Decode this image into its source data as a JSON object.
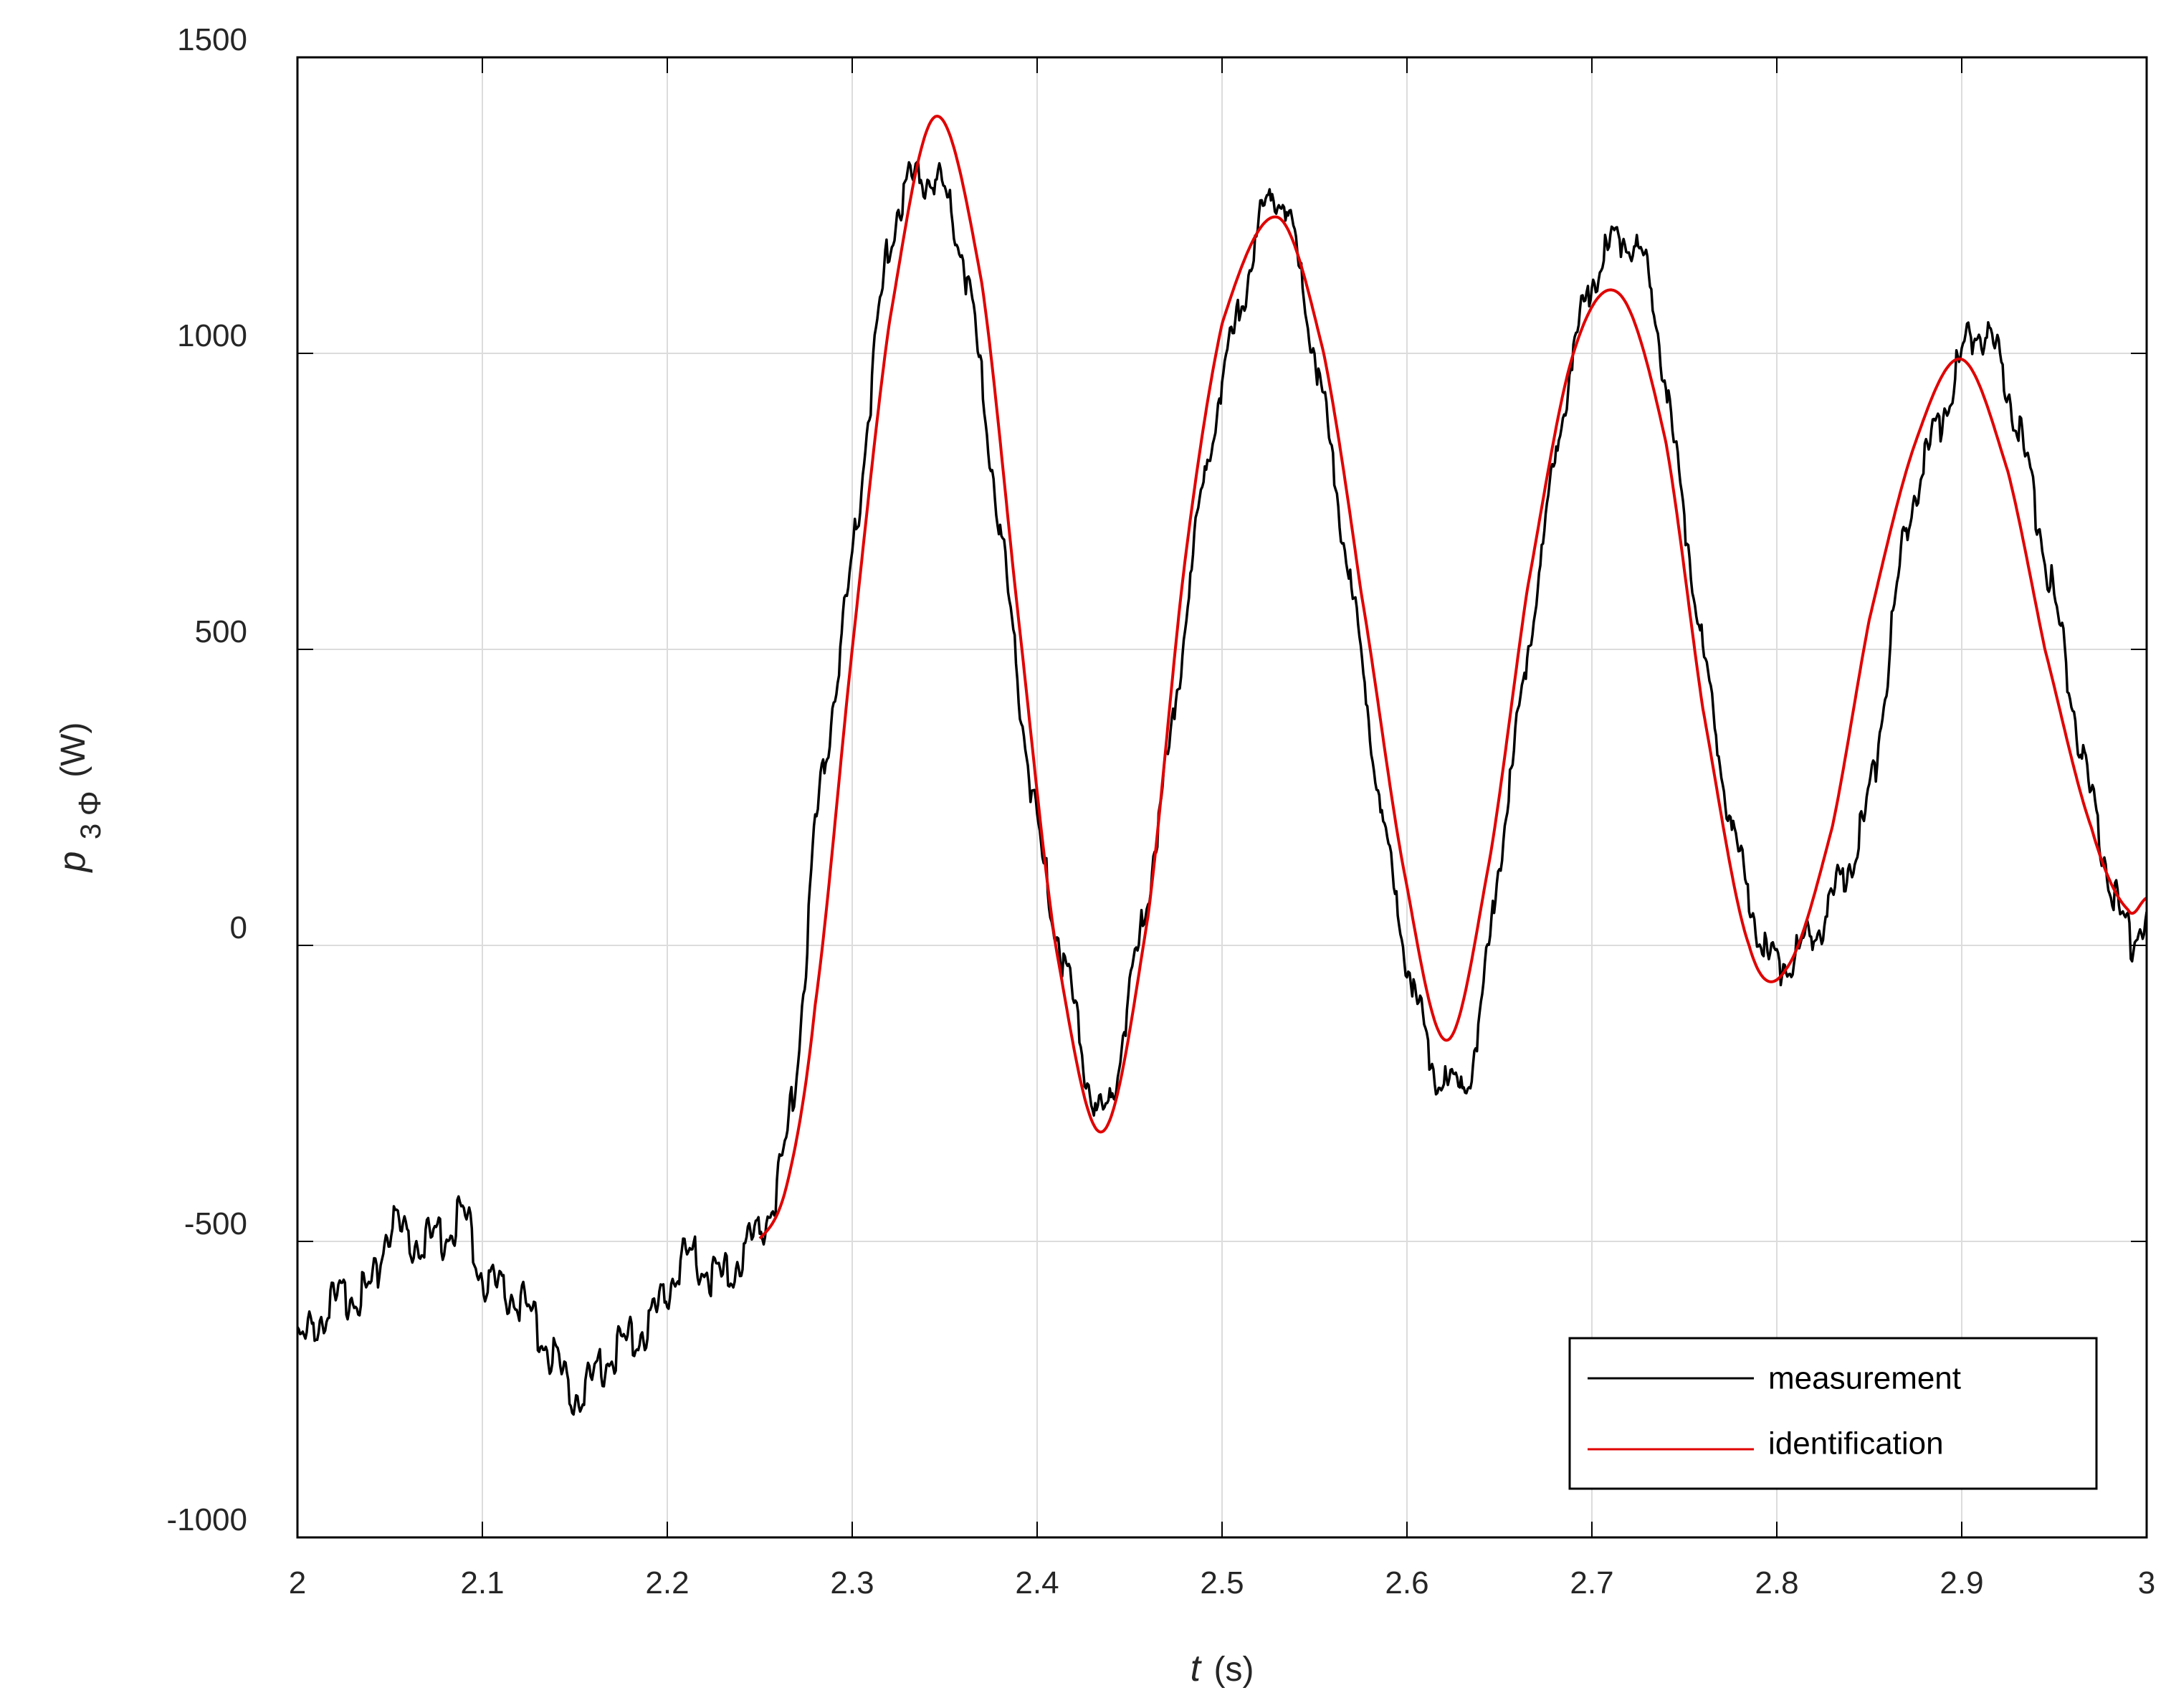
{
  "chart_data": {
    "type": "line",
    "xlabel": {
      "symbol": "t",
      "unit": "(s)"
    },
    "ylabel": {
      "symbol": "p",
      "subscript_num": "3",
      "subscript_sym": "Φ",
      "unit": "(W)"
    },
    "xlim": [
      2,
      3
    ],
    "ylim": [
      -1000,
      1500
    ],
    "xticks": [
      "2",
      "2.1",
      "2.2",
      "2.3",
      "2.4",
      "2.5",
      "2.6",
      "2.7",
      "2.8",
      "2.9",
      "3"
    ],
    "xtick_values": [
      2,
      2.1,
      2.2,
      2.3,
      2.4,
      2.5,
      2.6,
      2.7,
      2.8,
      2.9,
      3
    ],
    "yticks": [
      "1500",
      "1000",
      "500",
      "0",
      "-500",
      "-1000"
    ],
    "ytick_values": [
      1500,
      1000,
      500,
      0,
      -500,
      -1000
    ],
    "grid": true,
    "legend_position": "bottom-right",
    "series": [
      {
        "name": "measurement",
        "color": "#000000",
        "x": [
          2.0,
          2.02,
          2.04,
          2.05,
          2.06,
          2.08,
          2.09,
          2.1,
          2.12,
          2.14,
          2.15,
          2.17,
          2.19,
          2.21,
          2.23,
          2.25,
          2.26,
          2.27,
          2.28,
          2.3,
          2.32,
          2.34,
          2.36,
          2.38,
          2.4,
          2.42,
          2.435,
          2.45,
          2.47,
          2.49,
          2.51,
          2.53,
          2.55,
          2.57,
          2.59,
          2.61,
          2.62,
          2.635,
          2.65,
          2.67,
          2.69,
          2.71,
          2.73,
          2.75,
          2.77,
          2.79,
          2.8,
          2.815,
          2.83,
          2.85,
          2.87,
          2.89,
          2.91,
          2.93,
          2.95,
          2.97,
          2.99,
          3.0
        ],
        "y": [
          -680,
          -600,
          -580,
          -470,
          -500,
          -490,
          -460,
          -560,
          -600,
          -700,
          -760,
          -690,
          -640,
          -530,
          -560,
          -480,
          -400,
          -200,
          200,
          650,
          1180,
          1300,
          1160,
          700,
          200,
          -100,
          -290,
          -80,
          300,
          780,
          1080,
          1270,
          1000,
          600,
          150,
          -150,
          -230,
          -200,
          150,
          600,
          1000,
          1180,
          1130,
          720,
          300,
          30,
          -30,
          0,
          80,
          250,
          700,
          900,
          1040,
          880,
          580,
          250,
          20,
          60
        ],
        "noise_amplitude": 35
      },
      {
        "name": "identification",
        "color": "#e00000",
        "x": [
          2.25,
          2.265,
          2.28,
          2.3,
          2.32,
          2.345,
          2.37,
          2.39,
          2.41,
          2.435,
          2.46,
          2.48,
          2.5,
          2.53,
          2.555,
          2.575,
          2.6,
          2.622,
          2.645,
          2.665,
          2.69,
          2.715,
          2.74,
          2.76,
          2.785,
          2.805,
          2.83,
          2.85,
          2.875,
          2.9,
          2.925,
          2.945,
          2.97,
          2.99,
          3.0
        ],
        "y": [
          -495,
          -400,
          -100,
          500,
          1050,
          1400,
          1120,
          550,
          0,
          -315,
          50,
          650,
          1050,
          1230,
          1000,
          600,
          100,
          -160,
          150,
          600,
          1000,
          1100,
          850,
          400,
          0,
          -40,
          200,
          550,
          850,
          990,
          800,
          500,
          200,
          60,
          80
        ]
      }
    ]
  }
}
